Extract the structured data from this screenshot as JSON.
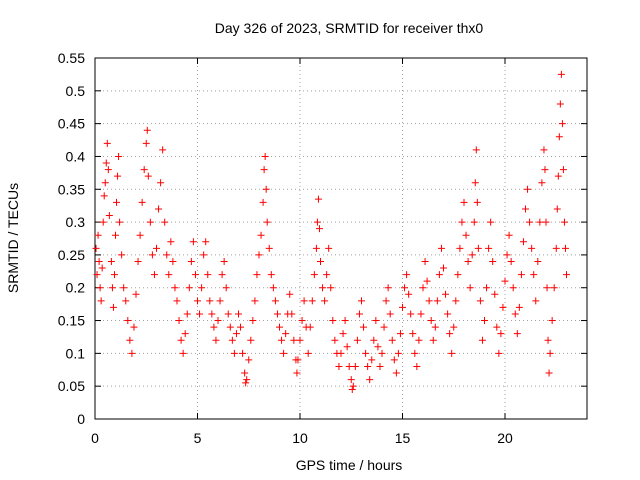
{
  "chart_data": {
    "type": "scatter",
    "title": "Day 326 of 2023, SRMTID for receiver thx0",
    "xlabel": "GPS time / hours",
    "ylabel": "SRMTID / TECUs",
    "xlim": [
      0,
      24
    ],
    "ylim": [
      0,
      0.55
    ],
    "xticks": [
      0,
      5,
      10,
      15,
      20
    ],
    "xtick_labels": [
      "0",
      "5",
      "10",
      "15",
      "20"
    ],
    "yticks": [
      0,
      0.05,
      0.1,
      0.15,
      0.2,
      0.25,
      0.3,
      0.35,
      0.4,
      0.45,
      0.5,
      0.55
    ],
    "ytick_labels": [
      "0",
      "0.05",
      "0.1",
      "0.15",
      "0.2",
      "0.25",
      "0.3",
      "0.35",
      "0.4",
      "0.45",
      "0.5",
      "0.55"
    ],
    "grid": true,
    "marker": "+",
    "marker_color": "#ff0000",
    "series": [
      {
        "name": "SRMTID",
        "points": [
          [
            0.05,
            0.26
          ],
          [
            0.1,
            0.22
          ],
          [
            0.15,
            0.28
          ],
          [
            0.2,
            0.24
          ],
          [
            0.25,
            0.2
          ],
          [
            0.3,
            0.18
          ],
          [
            0.35,
            0.23
          ],
          [
            0.4,
            0.3
          ],
          [
            0.45,
            0.34
          ],
          [
            0.5,
            0.36
          ],
          [
            0.55,
            0.39
          ],
          [
            0.6,
            0.42
          ],
          [
            0.65,
            0.38
          ],
          [
            0.7,
            0.31
          ],
          [
            0.8,
            0.24
          ],
          [
            0.85,
            0.2
          ],
          [
            0.9,
            0.17
          ],
          [
            0.95,
            0.22
          ],
          [
            1.0,
            0.28
          ],
          [
            1.05,
            0.33
          ],
          [
            1.1,
            0.37
          ],
          [
            1.15,
            0.4
          ],
          [
            1.2,
            0.3
          ],
          [
            1.3,
            0.25
          ],
          [
            1.4,
            0.2
          ],
          [
            1.5,
            0.18
          ],
          [
            1.6,
            0.15
          ],
          [
            1.7,
            0.12
          ],
          [
            1.8,
            0.1
          ],
          [
            1.9,
            0.14
          ],
          [
            2.0,
            0.19
          ],
          [
            2.1,
            0.24
          ],
          [
            2.2,
            0.28
          ],
          [
            2.3,
            0.33
          ],
          [
            2.4,
            0.38
          ],
          [
            2.5,
            0.42
          ],
          [
            2.55,
            0.44
          ],
          [
            2.6,
            0.37
          ],
          [
            2.7,
            0.3
          ],
          [
            2.8,
            0.25
          ],
          [
            2.9,
            0.22
          ],
          [
            3.0,
            0.26
          ],
          [
            3.1,
            0.32
          ],
          [
            3.2,
            0.36
          ],
          [
            3.3,
            0.41
          ],
          [
            3.4,
            0.3
          ],
          [
            3.5,
            0.25
          ],
          [
            3.6,
            0.22
          ],
          [
            3.7,
            0.27
          ],
          [
            3.8,
            0.24
          ],
          [
            3.9,
            0.2
          ],
          [
            4.0,
            0.18
          ],
          [
            4.1,
            0.15
          ],
          [
            4.2,
            0.12
          ],
          [
            4.3,
            0.1
          ],
          [
            4.4,
            0.13
          ],
          [
            4.5,
            0.16
          ],
          [
            4.6,
            0.2
          ],
          [
            4.7,
            0.24
          ],
          [
            4.8,
            0.27
          ],
          [
            4.9,
            0.22
          ],
          [
            5.0,
            0.18
          ],
          [
            5.1,
            0.16
          ],
          [
            5.2,
            0.2
          ],
          [
            5.3,
            0.25
          ],
          [
            5.4,
            0.27
          ],
          [
            5.5,
            0.22
          ],
          [
            5.6,
            0.18
          ],
          [
            5.7,
            0.16
          ],
          [
            5.8,
            0.14
          ],
          [
            5.9,
            0.12
          ],
          [
            6.0,
            0.15
          ],
          [
            6.1,
            0.18
          ],
          [
            6.2,
            0.22
          ],
          [
            6.3,
            0.24
          ],
          [
            6.4,
            0.2
          ],
          [
            6.5,
            0.16
          ],
          [
            6.6,
            0.14
          ],
          [
            6.7,
            0.12
          ],
          [
            6.8,
            0.1
          ],
          [
            6.9,
            0.13
          ],
          [
            7.0,
            0.16
          ],
          [
            7.1,
            0.14
          ],
          [
            7.2,
            0.1
          ],
          [
            7.3,
            0.07
          ],
          [
            7.35,
            0.055
          ],
          [
            7.4,
            0.06
          ],
          [
            7.5,
            0.09
          ],
          [
            7.6,
            0.12
          ],
          [
            7.7,
            0.15
          ],
          [
            7.8,
            0.18
          ],
          [
            7.9,
            0.22
          ],
          [
            8.0,
            0.25
          ],
          [
            8.1,
            0.28
          ],
          [
            8.2,
            0.33
          ],
          [
            8.25,
            0.38
          ],
          [
            8.3,
            0.4
          ],
          [
            8.35,
            0.35
          ],
          [
            8.4,
            0.3
          ],
          [
            8.5,
            0.26
          ],
          [
            8.6,
            0.22
          ],
          [
            8.7,
            0.2
          ],
          [
            8.8,
            0.18
          ],
          [
            8.9,
            0.16
          ],
          [
            9.0,
            0.14
          ],
          [
            9.1,
            0.12
          ],
          [
            9.2,
            0.1
          ],
          [
            9.3,
            0.13
          ],
          [
            9.4,
            0.16
          ],
          [
            9.5,
            0.19
          ],
          [
            9.6,
            0.16
          ],
          [
            9.7,
            0.12
          ],
          [
            9.8,
            0.09
          ],
          [
            9.85,
            0.07
          ],
          [
            9.9,
            0.09
          ],
          [
            10.0,
            0.12
          ],
          [
            10.1,
            0.15
          ],
          [
            10.2,
            0.18
          ],
          [
            10.3,
            0.14
          ],
          [
            10.4,
            0.1
          ],
          [
            10.5,
            0.14
          ],
          [
            10.6,
            0.18
          ],
          [
            10.7,
            0.22
          ],
          [
            10.8,
            0.26
          ],
          [
            10.85,
            0.3
          ],
          [
            10.9,
            0.335
          ],
          [
            10.95,
            0.29
          ],
          [
            11.0,
            0.24
          ],
          [
            11.1,
            0.2
          ],
          [
            11.2,
            0.18
          ],
          [
            11.3,
            0.22
          ],
          [
            11.4,
            0.26
          ],
          [
            11.5,
            0.2
          ],
          [
            11.6,
            0.15
          ],
          [
            11.7,
            0.12
          ],
          [
            11.8,
            0.1
          ],
          [
            11.9,
            0.08
          ],
          [
            12.0,
            0.1
          ],
          [
            12.1,
            0.13
          ],
          [
            12.2,
            0.15
          ],
          [
            12.3,
            0.11
          ],
          [
            12.4,
            0.08
          ],
          [
            12.5,
            0.06
          ],
          [
            12.55,
            0.045
          ],
          [
            12.6,
            0.05
          ],
          [
            12.7,
            0.08
          ],
          [
            12.8,
            0.12
          ],
          [
            12.9,
            0.16
          ],
          [
            13.0,
            0.18
          ],
          [
            13.1,
            0.14
          ],
          [
            13.2,
            0.1
          ],
          [
            13.3,
            0.08
          ],
          [
            13.4,
            0.06
          ],
          [
            13.5,
            0.09
          ],
          [
            13.6,
            0.12
          ],
          [
            13.7,
            0.15
          ],
          [
            13.8,
            0.11
          ],
          [
            13.9,
            0.08
          ],
          [
            14.0,
            0.1
          ],
          [
            14.1,
            0.14
          ],
          [
            14.2,
            0.18
          ],
          [
            14.3,
            0.2
          ],
          [
            14.4,
            0.16
          ],
          [
            14.5,
            0.12
          ],
          [
            14.6,
            0.09
          ],
          [
            14.7,
            0.07
          ],
          [
            14.8,
            0.1
          ],
          [
            14.9,
            0.13
          ],
          [
            15.0,
            0.17
          ],
          [
            15.1,
            0.2
          ],
          [
            15.2,
            0.22
          ],
          [
            15.3,
            0.19
          ],
          [
            15.4,
            0.16
          ],
          [
            15.5,
            0.13
          ],
          [
            15.6,
            0.1
          ],
          [
            15.7,
            0.08
          ],
          [
            15.8,
            0.12
          ],
          [
            15.9,
            0.16
          ],
          [
            16.0,
            0.2
          ],
          [
            16.1,
            0.24
          ],
          [
            16.2,
            0.21
          ],
          [
            16.3,
            0.18
          ],
          [
            16.4,
            0.15
          ],
          [
            16.5,
            0.12
          ],
          [
            16.6,
            0.14
          ],
          [
            16.7,
            0.18
          ],
          [
            16.8,
            0.22
          ],
          [
            16.9,
            0.26
          ],
          [
            17.0,
            0.23
          ],
          [
            17.1,
            0.19
          ],
          [
            17.2,
            0.16
          ],
          [
            17.3,
            0.13
          ],
          [
            17.4,
            0.1
          ],
          [
            17.5,
            0.14
          ],
          [
            17.6,
            0.18
          ],
          [
            17.7,
            0.22
          ],
          [
            17.8,
            0.26
          ],
          [
            17.9,
            0.3
          ],
          [
            18.0,
            0.33
          ],
          [
            18.1,
            0.28
          ],
          [
            18.2,
            0.24
          ],
          [
            18.3,
            0.2
          ],
          [
            18.4,
            0.25
          ],
          [
            18.5,
            0.3
          ],
          [
            18.55,
            0.36
          ],
          [
            18.6,
            0.41
          ],
          [
            18.65,
            0.33
          ],
          [
            18.7,
            0.26
          ],
          [
            18.8,
            0.18
          ],
          [
            18.9,
            0.12
          ],
          [
            19.0,
            0.15
          ],
          [
            19.1,
            0.2
          ],
          [
            19.2,
            0.26
          ],
          [
            19.3,
            0.3
          ],
          [
            19.4,
            0.24
          ],
          [
            19.5,
            0.19
          ],
          [
            19.6,
            0.14
          ],
          [
            19.7,
            0.1
          ],
          [
            19.8,
            0.13
          ],
          [
            19.9,
            0.17
          ],
          [
            20.0,
            0.21
          ],
          [
            20.1,
            0.25
          ],
          [
            20.2,
            0.28
          ],
          [
            20.3,
            0.24
          ],
          [
            20.4,
            0.2
          ],
          [
            20.5,
            0.16
          ],
          [
            20.6,
            0.13
          ],
          [
            20.7,
            0.17
          ],
          [
            20.8,
            0.22
          ],
          [
            20.9,
            0.27
          ],
          [
            21.0,
            0.32
          ],
          [
            21.1,
            0.35
          ],
          [
            21.2,
            0.3
          ],
          [
            21.3,
            0.26
          ],
          [
            21.4,
            0.22
          ],
          [
            21.5,
            0.18
          ],
          [
            21.6,
            0.24
          ],
          [
            21.7,
            0.3
          ],
          [
            21.8,
            0.36
          ],
          [
            21.9,
            0.41
          ],
          [
            21.95,
            0.38
          ],
          [
            22.0,
            0.3
          ],
          [
            22.05,
            0.2
          ],
          [
            22.1,
            0.12
          ],
          [
            22.15,
            0.07
          ],
          [
            22.2,
            0.1
          ],
          [
            22.3,
            0.15
          ],
          [
            22.4,
            0.2
          ],
          [
            22.5,
            0.26
          ],
          [
            22.55,
            0.32
          ],
          [
            22.6,
            0.37
          ],
          [
            22.65,
            0.43
          ],
          [
            22.7,
            0.48
          ],
          [
            22.75,
            0.525
          ],
          [
            22.8,
            0.45
          ],
          [
            22.85,
            0.38
          ],
          [
            22.9,
            0.3
          ],
          [
            22.95,
            0.26
          ],
          [
            23.0,
            0.22
          ]
        ]
      }
    ]
  }
}
